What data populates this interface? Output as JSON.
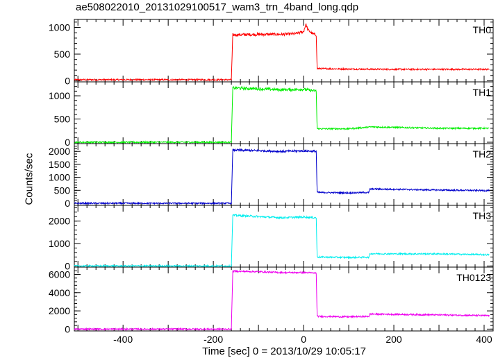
{
  "chart_data": {
    "type": "line",
    "title": "ae508022010_20131029100517_wam3_trn_4band_long.qdp",
    "xlabel": "Time [sec] 0 = 2013/10/29 10:05:17",
    "ylabel": "Counts/sec",
    "xlim": [
      -508,
      420
    ],
    "xticks": [
      -400,
      -200,
      0,
      200,
      400
    ],
    "grid": false,
    "panels": [
      {
        "name": "TH0",
        "color": "#ff0000",
        "ylim": [
          -20,
          1150
        ],
        "yticks": [
          0,
          500,
          1000
        ],
        "x": [
          -508,
          -160,
          -157,
          -100,
          -50,
          -20,
          0,
          5,
          10,
          20,
          28,
          30,
          100,
          200,
          300,
          410
        ],
        "y": [
          20,
          20,
          860,
          870,
          870,
          880,
          920,
          1060,
          950,
          880,
          860,
          230,
          220,
          215,
          215,
          215
        ]
      },
      {
        "name": "TH1",
        "color": "#00ee00",
        "ylim": [
          -30,
          1300
        ],
        "yticks": [
          0,
          500,
          1000
        ],
        "x": [
          -508,
          -160,
          -157,
          -100,
          -50,
          0,
          20,
          28,
          30,
          100,
          150,
          200,
          300,
          410
        ],
        "y": [
          0,
          0,
          1170,
          1150,
          1130,
          1140,
          1110,
          1100,
          290,
          290,
          330,
          320,
          300,
          300
        ]
      },
      {
        "name": "TH2",
        "color": "#0000cc",
        "ylim": [
          -80,
          2300
        ],
        "yticks": [
          0,
          500,
          1000,
          1500,
          2000
        ],
        "x": [
          -508,
          -160,
          -157,
          -100,
          -50,
          0,
          28,
          30,
          100,
          145,
          147,
          200,
          300,
          410
        ],
        "y": [
          0,
          0,
          2050,
          2030,
          2000,
          2020,
          2000,
          420,
          400,
          420,
          550,
          540,
          510,
          490
        ]
      },
      {
        "name": "TH3",
        "color": "#00eeee",
        "ylim": [
          -50,
          2700
        ],
        "yticks": [
          0,
          1000,
          2000
        ],
        "x": [
          -508,
          -160,
          -157,
          -100,
          -50,
          0,
          28,
          30,
          100,
          145,
          147,
          200,
          300,
          410
        ],
        "y": [
          0,
          0,
          2260,
          2200,
          2150,
          2180,
          2150,
          400,
          380,
          390,
          550,
          540,
          540,
          500
        ]
      },
      {
        "name": "TH0123",
        "color": "#ee00ee",
        "ylim": [
          -200,
          6800
        ],
        "yticks": [
          0,
          2000,
          4000,
          6000
        ],
        "x": [
          -508,
          -160,
          -157,
          -100,
          -50,
          0,
          28,
          30,
          100,
          145,
          147,
          200,
          300,
          410
        ],
        "y": [
          0,
          0,
          6350,
          6300,
          6200,
          6200,
          6150,
          1400,
          1350,
          1400,
          1650,
          1620,
          1560,
          1480
        ]
      }
    ]
  }
}
